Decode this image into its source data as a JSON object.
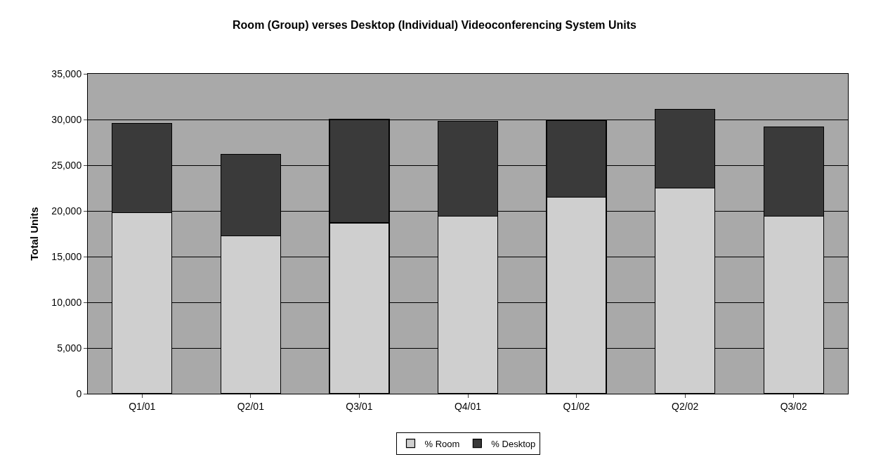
{
  "chart_data": {
    "type": "bar",
    "title": "Room (Group) verses Desktop (Individual) Videoconferencing System Units",
    "ylabel": "Total Units",
    "categories": [
      "Q1/01",
      "Q2/01",
      "Q3/01",
      "Q4/01",
      "Q1/02",
      "Q2/02",
      "Q3/02"
    ],
    "series": [
      {
        "name": "% Room",
        "color": "#cfcfcf",
        "values": [
          19800,
          17300,
          18700,
          19400,
          21500,
          22500,
          19400
        ]
      },
      {
        "name": "% Desktop",
        "color": "#3a3a3a",
        "values": [
          9800,
          8900,
          11300,
          10400,
          8400,
          8600,
          9800
        ]
      }
    ],
    "stacked": true,
    "ylim": [
      0,
      35000
    ],
    "yticks": [
      {
        "value": 0,
        "label": "0"
      },
      {
        "value": 5000,
        "label": "5,000"
      },
      {
        "value": 10000,
        "label": "10,000"
      },
      {
        "value": 15000,
        "label": "15,000"
      },
      {
        "value": 20000,
        "label": "20,000"
      },
      {
        "value": 25000,
        "label": "25,000"
      },
      {
        "value": 30000,
        "label": "30,000"
      },
      {
        "value": 35000,
        "label": "35,000"
      }
    ],
    "grid": "y",
    "legend": "bottom"
  }
}
